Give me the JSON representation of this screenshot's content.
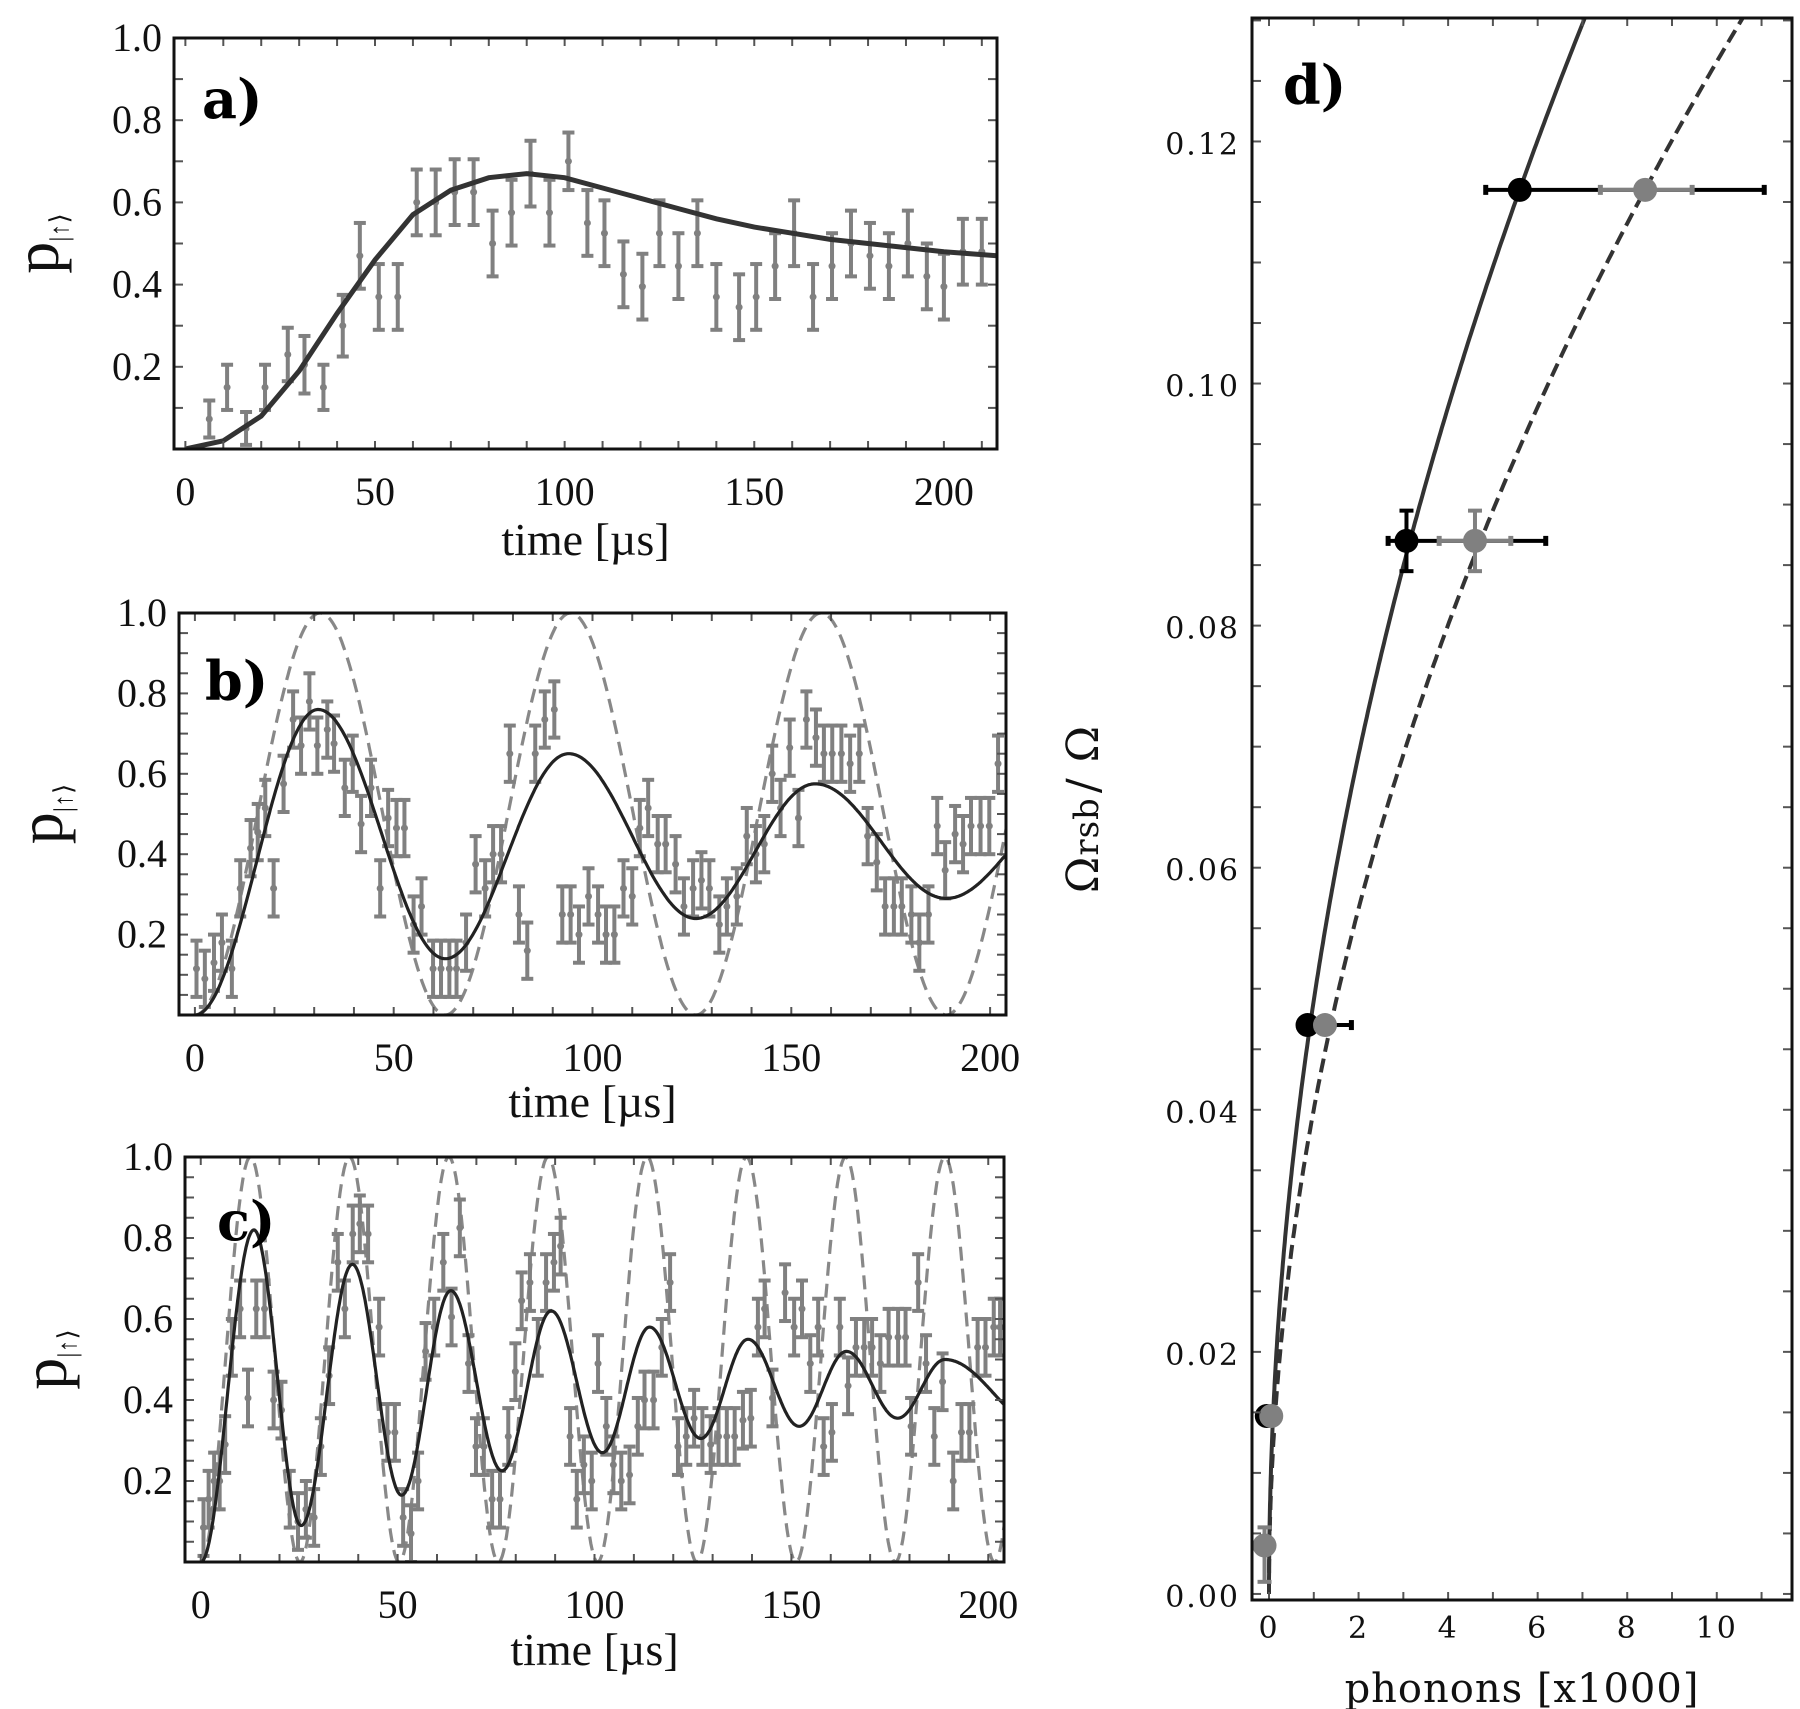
{
  "colors": {
    "data_grey": "#808080",
    "fit_dark": "#222222",
    "fit_a": "#333333",
    "dashed_grey": "#888888",
    "frame": "#111111"
  },
  "chart_data": [
    {
      "type": "scatter",
      "panel_label": "a)",
      "xlabel": "time [µs]",
      "ylabel": "p",
      "ylabel_sub": "|↑⟩",
      "xlim": [
        -3,
        214
      ],
      "ylim": [
        0,
        1
      ],
      "xticks": [
        0,
        50,
        100,
        150,
        200
      ],
      "xtick_labels": [
        "0",
        "50",
        "100",
        "150",
        "200"
      ],
      "yticks": [
        0.2,
        0.4,
        0.6,
        0.8,
        1.0
      ],
      "ytick_labels": [
        "0.2",
        "0.4",
        "0.6",
        "0.8",
        "1.0"
      ],
      "data": {
        "t": [
          6.3,
          11,
          16,
          21,
          27,
          31.4,
          36.4,
          41.5,
          46,
          51,
          56,
          61,
          66,
          71,
          76,
          81,
          86,
          91,
          96,
          101,
          106,
          110.5,
          115.5,
          120.5,
          125,
          130,
          135,
          140,
          146,
          150.5,
          155.5,
          160.5,
          165.5,
          170.5,
          175.5,
          180.5,
          185.5,
          190.5,
          195.5,
          200,
          205,
          210
        ],
        "p": [
          0.073,
          0.15,
          0.05,
          0.15,
          0.23,
          0.205,
          0.15,
          0.3,
          0.47,
          0.37,
          0.37,
          0.6,
          0.6,
          0.625,
          0.625,
          0.5,
          0.575,
          0.67,
          0.575,
          0.7,
          0.55,
          0.525,
          0.425,
          0.395,
          0.525,
          0.445,
          0.525,
          0.37,
          0.345,
          0.37,
          0.445,
          0.525,
          0.37,
          0.445,
          0.5,
          0.47,
          0.445,
          0.5,
          0.42,
          0.395,
          0.48,
          0.48
        ],
        "yerr": [
          0.045,
          0.055,
          0.04,
          0.055,
          0.065,
          0.07,
          0.055,
          0.075,
          0.08,
          0.08,
          0.08,
          0.08,
          0.08,
          0.08,
          0.08,
          0.08,
          0.08,
          0.08,
          0.08,
          0.07,
          0.08,
          0.08,
          0.08,
          0.08,
          0.08,
          0.08,
          0.08,
          0.08,
          0.08,
          0.08,
          0.08,
          0.08,
          0.08,
          0.08,
          0.08,
          0.08,
          0.08,
          0.08,
          0.08,
          0.08,
          0.08,
          0.08
        ]
      },
      "fit_solid": {
        "kind": "points",
        "points": [
          [
            0,
            0
          ],
          [
            10,
            0.02
          ],
          [
            20,
            0.08
          ],
          [
            30,
            0.19
          ],
          [
            40,
            0.33
          ],
          [
            50,
            0.46
          ],
          [
            60,
            0.57
          ],
          [
            70,
            0.63
          ],
          [
            80,
            0.66
          ],
          [
            90,
            0.67
          ],
          [
            100,
            0.66
          ],
          [
            110,
            0.635
          ],
          [
            120,
            0.61
          ],
          [
            130,
            0.585
          ],
          [
            140,
            0.56
          ],
          [
            150,
            0.54
          ],
          [
            160,
            0.525
          ],
          [
            170,
            0.51
          ],
          [
            180,
            0.5
          ],
          [
            190,
            0.49
          ],
          [
            200,
            0.48
          ],
          [
            214,
            0.47
          ]
        ]
      }
    },
    {
      "type": "scatter",
      "panel_label": "b)",
      "xlabel": "time [µs]",
      "ylabel": "p",
      "ylabel_sub": "|↑⟩",
      "xlim": [
        -4,
        204
      ],
      "ylim": [
        0,
        1
      ],
      "xticks": [
        0,
        50,
        100,
        150,
        200
      ],
      "xtick_labels": [
        "0",
        "50",
        "100",
        "150",
        "200"
      ],
      "yticks": [
        0.2,
        0.4,
        0.6,
        0.8,
        1.0
      ],
      "ytick_labels": [
        "0.2",
        "0.4",
        "0.6",
        "0.8",
        "1.0"
      ],
      "data": {
        "t": [
          0.4,
          2.5,
          4.8,
          6.8,
          9.3,
          11.4,
          14,
          15.8,
          17.7,
          19.8,
          22.3,
          24.7,
          26.7,
          28.8,
          30.8,
          33.3,
          35,
          37.7,
          39.7,
          41.8,
          44.3,
          46.6,
          48.6,
          50.7,
          52.7,
          55,
          57,
          59.9,
          61.9,
          64,
          65.8,
          68.2,
          70.6,
          73,
          75,
          77,
          79.2,
          81.5,
          83.6,
          85.6,
          88,
          90.4,
          92.4,
          94.5,
          96.6,
          99,
          101.4,
          103.4,
          105.5,
          107.8,
          110,
          111.9,
          114,
          116.4,
          118.4,
          120.9,
          123,
          125.3,
          127.4,
          129.4,
          131.9,
          133.8,
          136.3,
          138.8,
          141.1,
          143.2,
          145.2,
          147.3,
          149.6,
          151.8,
          153.8,
          156.2,
          158.2,
          160.3,
          162.6,
          164.8,
          167.1,
          169.2,
          171.5,
          173.6,
          175.8,
          177.8,
          180.2,
          182.2,
          184.5,
          186.7,
          188.7,
          191.2,
          193.2,
          195.2,
          197.6,
          199.8,
          202
        ],
        "p": [
          0.115,
          0.09,
          0.13,
          0.18,
          0.115,
          0.315,
          0.415,
          0.455,
          0.515,
          0.315,
          0.575,
          0.735,
          0.67,
          0.78,
          0.67,
          0.71,
          0.675,
          0.565,
          0.625,
          0.475,
          0.565,
          0.315,
          0.49,
          0.465,
          0.465,
          0.225,
          0.27,
          0.115,
          0.115,
          0.115,
          0.115,
          0.18,
          0.375,
          0.315,
          0.4,
          0.4,
          0.65,
          0.25,
          0.16,
          0.65,
          0.735,
          0.76,
          0.25,
          0.25,
          0.2,
          0.295,
          0.25,
          0.2,
          0.2,
          0.315,
          0.295,
          0.465,
          0.515,
          0.425,
          0.425,
          0.375,
          0.27,
          0.315,
          0.335,
          0.315,
          0.225,
          0.27,
          0.295,
          0.445,
          0.4,
          0.425,
          0.6,
          0.515,
          0.665,
          0.49,
          0.735,
          0.69,
          0.65,
          0.65,
          0.65,
          0.625,
          0.65,
          0.445,
          0.38,
          0.27,
          0.27,
          0.27,
          0.25,
          0.18,
          0.25,
          0.47,
          0.36,
          0.45,
          0.425,
          0.47,
          0.47,
          0.47,
          0.625
        ],
        "yerr": 0.07
      },
      "fit_solid": {
        "kind": "extrema",
        "points": [
          [
            0,
            0
          ],
          [
            31,
            0.76
          ],
          [
            63,
            0.14
          ],
          [
            94,
            0.65
          ],
          [
            126,
            0.24
          ],
          [
            156,
            0.575
          ],
          [
            189,
            0.29
          ],
          [
            220,
            0.52
          ]
        ]
      },
      "fit_dashed": {
        "kind": "extrema",
        "points": [
          [
            0,
            0
          ],
          [
            31.5,
            1
          ],
          [
            63,
            0
          ],
          [
            94.5,
            1
          ],
          [
            126,
            0
          ],
          [
            157.5,
            1
          ],
          [
            189,
            0
          ],
          [
            220.5,
            1
          ]
        ]
      }
    },
    {
      "type": "scatter",
      "panel_label": "c)",
      "xlabel": "time [µs]",
      "ylabel": "p",
      "ylabel_sub": "|↑⟩",
      "xlim": [
        -4,
        204
      ],
      "ylim": [
        0,
        1
      ],
      "xticks": [
        0,
        50,
        100,
        150,
        200
      ],
      "xtick_labels": [
        "0",
        "50",
        "100",
        "150",
        "200"
      ],
      "yticks": [
        0.2,
        0.4,
        0.6,
        0.8,
        1.0
      ],
      "ytick_labels": [
        "0.2",
        "0.4",
        "0.6",
        "0.8",
        "1.0"
      ],
      "data": {
        "t": [
          0.7,
          2,
          3.4,
          4.8,
          6.2,
          7.9,
          10,
          12,
          14.1,
          16.2,
          18.5,
          20.5,
          22.6,
          24.7,
          26.7,
          28.8,
          30.5,
          32.6,
          34.8,
          36.6,
          38.6,
          40.4,
          42.5,
          45.3,
          47.4,
          49.3,
          51.4,
          53.4,
          55.2,
          57.1,
          59.3,
          61.6,
          63.7,
          65.8,
          68,
          69.9,
          71.9,
          74,
          76,
          78.1,
          79.9,
          81.5,
          83.6,
          85.6,
          87.7,
          89.7,
          91.4,
          93.8,
          95.5,
          97.3,
          99.3,
          100.9,
          103,
          104.8,
          106.8,
          108.9,
          111,
          112.7,
          115,
          117.1,
          119.2,
          121.2,
          123.3,
          125.3,
          127.4,
          129.5,
          131.5,
          133.6,
          135.6,
          137.7,
          139.7,
          141.5,
          143.2,
          145.2,
          148.4,
          150.7,
          152.7,
          154.8,
          156.8,
          158.2,
          160.3,
          162.3,
          164.4,
          166.4,
          168.5,
          170.5,
          172.6,
          174.7,
          177.1,
          179,
          180.4,
          182.2,
          184.2,
          186.3,
          188.4,
          191.1,
          193.2,
          195.2,
          197.3,
          199.3,
          201.4,
          203
        ],
        "p": [
          0.085,
          0.155,
          0.2,
          0.2,
          0.29,
          0.53,
          0.625,
          0.405,
          0.625,
          0.625,
          0.4,
          0.375,
          0.155,
          0.1,
          0.13,
          0.11,
          0.285,
          0.46,
          0.74,
          0.625,
          0.81,
          0.835,
          0.81,
          0.58,
          0.32,
          0.32,
          0.11,
          0.07,
          0.2,
          0.52,
          0.58,
          0.74,
          0.605,
          0.825,
          0.49,
          0.285,
          0.285,
          0.155,
          0.155,
          0.31,
          0.47,
          0.645,
          0.69,
          0.53,
          0.69,
          0.74,
          0.78,
          0.31,
          0.155,
          0.24,
          0.2,
          0.49,
          0.335,
          0.24,
          0.2,
          0.215,
          0.335,
          0.4,
          0.4,
          0.53,
          0.69,
          0.285,
          0.31,
          0.355,
          0.31,
          0.29,
          0.31,
          0.31,
          0.31,
          0.35,
          0.355,
          0.58,
          0.625,
          0.405,
          0.665,
          0.58,
          0.625,
          0.49,
          0.58,
          0.285,
          0.32,
          0.58,
          0.435,
          0.53,
          0.53,
          0.53,
          0.49,
          0.555,
          0.555,
          0.555,
          0.335,
          0.69,
          0.49,
          0.31,
          0.445,
          0.2,
          0.32,
          0.32,
          0.53,
          0.53,
          0.58,
          0.58
        ],
        "yerr": 0.07
      },
      "fit_solid": {
        "kind": "extrema",
        "points": [
          [
            0,
            0
          ],
          [
            13.5,
            0.82
          ],
          [
            25.5,
            0.09
          ],
          [
            38.5,
            0.735
          ],
          [
            51,
            0.165
          ],
          [
            63.5,
            0.67
          ],
          [
            76.5,
            0.225
          ],
          [
            89,
            0.62
          ],
          [
            102,
            0.27
          ],
          [
            114,
            0.58
          ],
          [
            127,
            0.305
          ],
          [
            139,
            0.55
          ],
          [
            152,
            0.335
          ],
          [
            164,
            0.52
          ],
          [
            177,
            0.355
          ],
          [
            189,
            0.5
          ],
          [
            214,
            0.33
          ]
        ]
      },
      "fit_dashed": {
        "kind": "extrema",
        "points": [
          [
            0,
            0
          ],
          [
            12.6,
            1
          ],
          [
            25.2,
            0
          ],
          [
            37.8,
            1
          ],
          [
            50.4,
            0
          ],
          [
            63,
            1
          ],
          [
            75.6,
            0
          ],
          [
            88.2,
            1
          ],
          [
            100.8,
            0
          ],
          [
            113.4,
            1
          ],
          [
            126,
            0
          ],
          [
            138.6,
            1
          ],
          [
            151.2,
            0
          ],
          [
            163.8,
            1
          ],
          [
            176.4,
            0
          ],
          [
            189,
            1
          ],
          [
            201.6,
            0
          ],
          [
            214.2,
            1
          ]
        ]
      }
    },
    {
      "type": "scatter",
      "panel_label": "d)",
      "xlabel": "phonons [x1000]",
      "ylabel": "Ω",
      "ylabel_sub": "rsb",
      "ylabel_tail": "/ Ω",
      "xlim": [
        -0.38,
        11.68
      ],
      "ylim": [
        -0.0005,
        0.1302
      ],
      "xticks": [
        0,
        2,
        4,
        6,
        8,
        10
      ],
      "xtick_labels": [
        "0",
        "2",
        "4",
        "6",
        "8",
        "10"
      ],
      "yticks": [
        0,
        0.02,
        0.04,
        0.06,
        0.08,
        0.1,
        0.12
      ],
      "ytick_labels": [
        "0.00",
        "0.02",
        "0.04",
        "0.06",
        "0.08",
        "0.10",
        "0.12"
      ],
      "series": [
        {
          "name": "black",
          "color": "#000000",
          "points": [
            {
              "x": 5.6,
              "y": 0.116,
              "xlo": 4.84,
              "xhi": 11.06
            },
            {
              "x": 3.07,
              "y": 0.087,
              "xlo": 2.66,
              "xhi": 6.18,
              "ylo": 0.0845,
              "yhi": 0.0895
            },
            {
              "x": 0.86,
              "y": 0.047,
              "xlo": 0.86,
              "xhi": 1.84
            },
            {
              "x": -0.05,
              "y": 0.0147
            }
          ]
        },
        {
          "name": "grey",
          "color": "#808080",
          "points": [
            {
              "x": 8.4,
              "y": 0.116,
              "xlo": 7.4,
              "xhi": 9.45
            },
            {
              "x": 4.6,
              "y": 0.087,
              "xlo": 3.8,
              "xhi": 5.4,
              "ylo": 0.0845,
              "yhi": 0.0895
            },
            {
              "x": 1.25,
              "y": 0.047
            },
            {
              "x": 0.05,
              "y": 0.0147
            },
            {
              "x": -0.1,
              "y": 0.004,
              "ylo": 0.001,
              "yhi": 0.0055
            }
          ]
        }
      ],
      "fit_solid": {
        "kind": "quadratic",
        "x_per_y2": 416
      },
      "fit_dashed": {
        "kind": "quadratic",
        "x_per_y2": 624
      }
    }
  ]
}
